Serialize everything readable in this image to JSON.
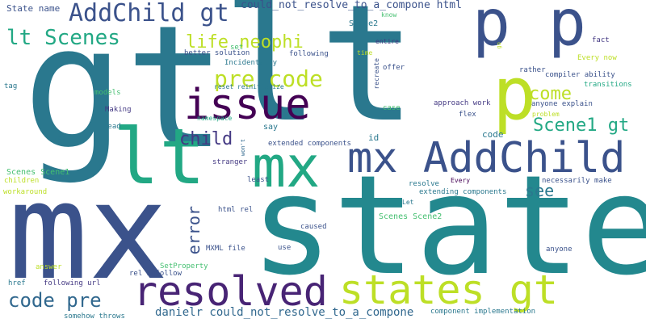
{
  "palette": {
    "teal": "#2a788e",
    "dark_teal": "#23888e",
    "blue": "#31688e",
    "navy": "#3b528b",
    "indigo": "#443983",
    "purple": "#482475",
    "dark_purple": "#440154",
    "green": "#22a884",
    "light_green": "#44bf70",
    "lime": "#7ad151",
    "yellow_green": "#bddf26",
    "yellow": "#fde725"
  },
  "words": [
    {
      "text": "gt",
      "color": "teal",
      "size": 210
    },
    {
      "text": "lt",
      "color": "teal",
      "size": 200
    },
    {
      "text": "state",
      "color": "dark_teal",
      "size": 170
    },
    {
      "text": "mx",
      "color": "navy",
      "size": 165
    },
    {
      "text": "p p",
      "color": "navy",
      "size": 78
    },
    {
      "text": "p",
      "color": "yellow_green",
      "size": 90
    },
    {
      "text": "mx AddChild",
      "color": "navy",
      "size": 52
    },
    {
      "text": "lt",
      "color": "green",
      "size": 95
    },
    {
      "text": "mx",
      "color": "green",
      "size": 70
    },
    {
      "text": "issue",
      "color": "dark_purple",
      "size": 52
    },
    {
      "text": "resolved",
      "color": "purple",
      "size": 50
    },
    {
      "text": "states gt",
      "color": "yellow_green",
      "size": 50
    },
    {
      "text": "AddChild gt",
      "color": "navy",
      "size": 30
    },
    {
      "text": "lt Scenes",
      "color": "green",
      "size": 26
    },
    {
      "text": "life neophi",
      "color": "yellow_green",
      "size": 22
    },
    {
      "text": "pre code",
      "color": "yellow_green",
      "size": 28
    },
    {
      "text": "come",
      "color": "yellow_green",
      "size": 22
    },
    {
      "text": "Scene1 gt",
      "color": "green",
      "size": 22
    },
    {
      "text": "child",
      "color": "indigo",
      "size": 22
    },
    {
      "text": "see",
      "color": "teal",
      "size": 20
    },
    {
      "text": "error",
      "color": "navy",
      "size": 20
    },
    {
      "text": "code pre",
      "color": "blue",
      "size": 24
    },
    {
      "text": "danielr could_not_resolve_to_a_compone",
      "color": "blue",
      "size": 14
    },
    {
      "text": "could_not_resolve_to_a_compone html",
      "color": "navy",
      "size": 13
    },
    {
      "text": "State name",
      "color": "navy",
      "size": 11
    },
    {
      "text": "Scene2",
      "color": "teal",
      "size": 10
    },
    {
      "text": "know",
      "color": "light_green",
      "size": 8
    },
    {
      "text": "entire",
      "color": "indigo",
      "size": 8
    },
    {
      "text": "fact",
      "color": "indigo",
      "size": 9
    },
    {
      "text": "go",
      "color": "yellow_green",
      "size": 7
    },
    {
      "text": "set",
      "color": "light_green",
      "size": 9
    },
    {
      "text": "following",
      "color": "navy",
      "size": 9
    },
    {
      "text": "time",
      "color": "yellow_green",
      "size": 8
    },
    {
      "text": "better solution",
      "color": "navy",
      "size": 9
    },
    {
      "text": "offer",
      "color": "navy",
      "size": 9
    },
    {
      "text": "Every now",
      "color": "yellow_green",
      "size": 9
    },
    {
      "text": "Incidentally",
      "color": "teal",
      "size": 9
    },
    {
      "text": "recreate",
      "color": "navy",
      "size": 8
    },
    {
      "text": "compiler ability",
      "color": "navy",
      "size": 9
    },
    {
      "text": "tag",
      "color": "teal",
      "size": 9
    },
    {
      "text": "reset reinitialize",
      "color": "teal",
      "size": 8
    },
    {
      "text": "rather",
      "color": "navy",
      "size": 9
    },
    {
      "text": "transitions",
      "color": "green",
      "size": 9
    },
    {
      "text": "models",
      "color": "light_green",
      "size": 9
    },
    {
      "text": "approach work",
      "color": "indigo",
      "size": 9
    },
    {
      "text": "anyone explain",
      "color": "navy",
      "size": 9
    },
    {
      "text": "Making",
      "color": "indigo",
      "size": 9
    },
    {
      "text": "case",
      "color": "light_green",
      "size": 9
    },
    {
      "text": "flex",
      "color": "navy",
      "size": 9
    },
    {
      "text": "problem",
      "color": "yellow_green",
      "size": 8
    },
    {
      "text": "namespace",
      "color": "green",
      "size": 8
    },
    {
      "text": "read",
      "color": "teal",
      "size": 9
    },
    {
      "text": "say",
      "color": "teal",
      "size": 10
    },
    {
      "text": "id",
      "color": "teal",
      "size": 11
    },
    {
      "text": "code",
      "color": "teal",
      "size": 11
    },
    {
      "text": "looks",
      "color": "teal",
      "size": 9
    },
    {
      "text": "won't",
      "color": "blue",
      "size": 7
    },
    {
      "text": "extended components",
      "color": "navy",
      "size": 9
    },
    {
      "text": "Scenes Scene1",
      "color": "light_green",
      "size": 10
    },
    {
      "text": "children",
      "color": "yellow_green",
      "size": 9
    },
    {
      "text": "stranger",
      "color": "indigo",
      "size": 9
    },
    {
      "text": "Every",
      "color": "dark_purple",
      "size": 8
    },
    {
      "text": "workaround",
      "color": "yellow_green",
      "size": 9
    },
    {
      "text": "least",
      "color": "navy",
      "size": 9
    },
    {
      "text": "resolve",
      "color": "teal",
      "size": 9
    },
    {
      "text": "necessarily make",
      "color": "navy",
      "size": 9
    },
    {
      "text": "extending components",
      "color": "teal",
      "size": 9
    },
    {
      "text": "Let",
      "color": "teal",
      "size": 8
    },
    {
      "text": "html rel",
      "color": "navy",
      "size": 9
    },
    {
      "text": "Scenes Scene2",
      "color": "light_green",
      "size": 10
    },
    {
      "text": "caused",
      "color": "navy",
      "size": 9
    },
    {
      "text": "MXML file",
      "color": "navy",
      "size": 9
    },
    {
      "text": "use",
      "color": "navy",
      "size": 9
    },
    {
      "text": "anyone",
      "color": "navy",
      "size": 9
    },
    {
      "text": "SetProperty",
      "color": "light_green",
      "size": 9
    },
    {
      "text": "answer",
      "color": "yellow_green",
      "size": 9
    },
    {
      "text": "rel nofollow",
      "color": "navy",
      "size": 9
    },
    {
      "text": "href",
      "color": "teal",
      "size": 9
    },
    {
      "text": "following url",
      "color": "indigo",
      "size": 9
    },
    {
      "text": "somehow throws",
      "color": "teal",
      "size": 9
    },
    {
      "text": "component implementation",
      "color": "teal",
      "size": 9
    }
  ]
}
